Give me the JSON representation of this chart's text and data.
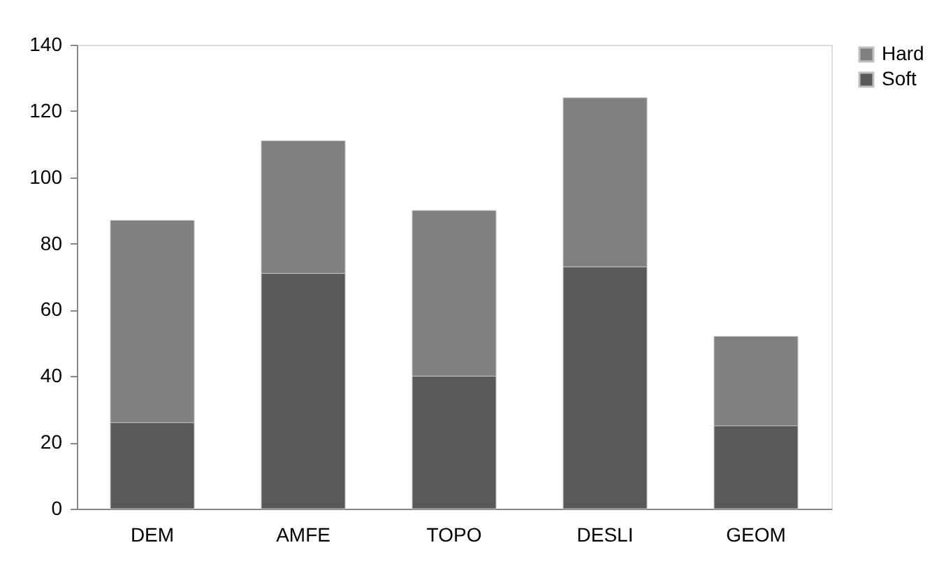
{
  "chart_data": {
    "type": "bar",
    "stacked": true,
    "categories": [
      "DEM",
      "AMFE",
      "TOPO",
      "DESLI",
      "GEOM"
    ],
    "series": [
      {
        "name": "Soft",
        "color": "#595959",
        "values": [
          26,
          71,
          40,
          73,
          25
        ]
      },
      {
        "name": "Hard",
        "color": "#808080",
        "values": [
          61,
          40,
          50,
          51,
          27
        ]
      }
    ],
    "ylim": [
      0,
      140
    ],
    "yticks": [
      0,
      20,
      40,
      60,
      80,
      100,
      120,
      140
    ],
    "grid": false,
    "legend": "right"
  }
}
